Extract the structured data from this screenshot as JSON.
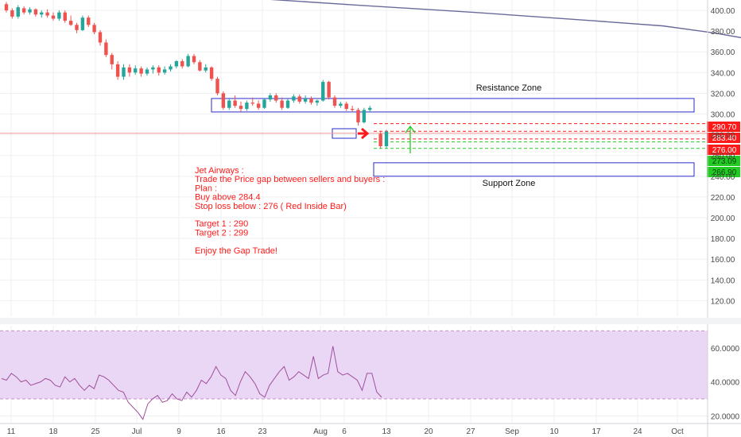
{
  "chart_data": [
    {
      "type": "candlestick",
      "ylim": [
        105,
        410
      ],
      "y_ticks": [
        120,
        140,
        160,
        180,
        200,
        220,
        240,
        260,
        280,
        300,
        320,
        340,
        360,
        380,
        400
      ],
      "y_tick_labels": [
        "120.00",
        "140.00",
        "160.00",
        "180.00",
        "200.00",
        "220.00",
        "240.00",
        "260.00",
        "280.00",
        "300.00",
        "320.00",
        "340.00",
        "360.00",
        "380.00",
        "400.00"
      ],
      "x_tick_labels": [
        "11",
        "18",
        "25",
        "Jul",
        "9",
        "16",
        "23",
        "Aug",
        "6",
        "13",
        "20",
        "27",
        "Sep",
        "10",
        "17",
        "24",
        "Oct"
      ],
      "grid": true,
      "candles": [
        [
          406,
          408,
          398,
          400
        ],
        [
          400,
          402,
          392,
          394
        ],
        [
          394,
          405,
          392,
          403
        ],
        [
          402,
          404,
          396,
          398
        ],
        [
          398,
          403,
          396,
          401
        ],
        [
          401,
          402,
          394,
          396
        ],
        [
          396,
          400,
          393,
          398
        ],
        [
          398,
          401,
          393,
          395
        ],
        [
          395,
          398,
          390,
          392
        ],
        [
          392,
          400,
          390,
          398
        ],
        [
          398,
          400,
          388,
          390
        ],
        [
          390,
          395,
          385,
          386
        ],
        [
          386,
          388,
          378,
          381
        ],
        [
          381,
          395,
          380,
          393
        ],
        [
          393,
          395,
          384,
          386
        ],
        [
          386,
          388,
          377,
          379
        ],
        [
          379,
          381,
          366,
          369
        ],
        [
          369,
          372,
          355,
          357
        ],
        [
          357,
          359,
          343,
          348
        ],
        [
          348,
          351,
          333,
          336
        ],
        [
          336,
          348,
          333,
          345
        ],
        [
          345,
          348,
          336,
          340
        ],
        [
          340,
          347,
          338,
          344
        ],
        [
          344,
          346,
          336,
          339
        ],
        [
          339,
          345,
          337,
          343
        ],
        [
          343,
          347,
          339,
          345
        ],
        [
          345,
          347,
          337,
          340
        ],
        [
          340,
          346,
          338,
          343
        ],
        [
          343,
          348,
          341,
          346
        ],
        [
          346,
          352,
          344,
          351
        ],
        [
          351,
          353,
          344,
          346
        ],
        [
          346,
          358,
          345,
          356
        ],
        [
          356,
          358,
          348,
          350
        ],
        [
          350,
          352,
          341,
          342
        ],
        [
          342,
          348,
          340,
          345
        ],
        [
          345,
          346,
          332,
          334
        ],
        [
          334,
          336,
          318,
          320
        ],
        [
          320,
          322,
          304,
          306
        ],
        [
          306,
          315,
          304,
          313
        ],
        [
          313,
          318,
          306,
          308
        ],
        [
          308,
          312,
          302,
          305
        ],
        [
          305,
          313,
          303,
          311
        ],
        [
          311,
          316,
          308,
          310
        ],
        [
          310,
          313,
          304,
          306
        ],
        [
          306,
          315,
          305,
          314
        ],
        [
          314,
          320,
          312,
          318
        ],
        [
          318,
          320,
          311,
          313
        ],
        [
          313,
          316,
          304,
          306
        ],
        [
          306,
          315,
          305,
          313
        ],
        [
          313,
          319,
          311,
          317
        ],
        [
          317,
          319,
          310,
          312
        ],
        [
          312,
          318,
          310,
          315
        ],
        [
          315,
          317,
          309,
          311
        ],
        [
          311,
          314,
          308,
          313
        ],
        [
          313,
          333,
          312,
          331
        ],
        [
          331,
          332,
          314,
          316
        ],
        [
          316,
          318,
          306,
          308
        ],
        [
          308,
          312,
          306,
          310
        ],
        [
          310,
          312,
          303,
          305
        ],
        [
          305,
          308,
          302,
          304
        ],
        [
          304,
          306,
          289,
          292
        ],
        [
          292,
          306,
          291,
          304
        ],
        [
          304,
          308,
          302,
          306
        ],
        [
          281,
          284,
          267,
          269
        ],
        [
          269,
          285,
          267,
          283
        ]
      ],
      "sma": [
        [
          41,
          412
        ],
        [
          60,
          405
        ],
        [
          80,
          398
        ],
        [
          100,
          390
        ],
        [
          112,
          385
        ],
        [
          121,
          378
        ],
        [
          129,
          370
        ]
      ],
      "resistance_zone": {
        "label": "Resistance Zone",
        "top": 315,
        "bottom": 302
      },
      "support_zone": {
        "label": "Support Zone",
        "top": 253,
        "bottom": 240
      },
      "price_levels": [
        {
          "label": "290.70",
          "value": 290.7,
          "color": "#ff1a1a",
          "style": "dashed"
        },
        {
          "label": "283.40",
          "value": 283.4,
          "color": "#ff1a1a",
          "style": "dashed"
        },
        {
          "label": "276.00",
          "value": 276.0,
          "color": "#ff1a1a",
          "style": "dashed"
        },
        {
          "label": "273.09",
          "value": 273.09,
          "color": "#22cc22",
          "style": "dashed"
        },
        {
          "label": "266.90",
          "value": 266.9,
          "color": "#22cc22",
          "style": "dashed"
        }
      ],
      "last_price": 281.4,
      "note_lines": [
        "Jet Airways :",
        "Trade the Price gap between sellers and buyers :",
        "Plan :",
        "Buy above 284.4",
        "Stop loss below : 276 ( Red Inside Bar)",
        "",
        "Target 1 : 290",
        "Target 2 : 299",
        "",
        "Enjoy the Gap Trade!"
      ],
      "colors": {
        "up": "#26a69a",
        "down": "#ef5350",
        "sma": "#6a6a9a",
        "zone": "#2b2bcc",
        "note": "#ff1a1a"
      }
    },
    {
      "type": "line",
      "ylim": [
        16,
        73
      ],
      "y_ticks": [
        20,
        40,
        60
      ],
      "y_tick_labels": [
        "20.0000",
        "40.0000",
        "60.0000"
      ],
      "band": [
        30,
        70
      ],
      "values": [
        42,
        41,
        45,
        43,
        40,
        41,
        38,
        39,
        40,
        42,
        41,
        38,
        37,
        43,
        40,
        42,
        38,
        35,
        38,
        36,
        44,
        43,
        41,
        38,
        35,
        34,
        28,
        25,
        22,
        18,
        27,
        30,
        32,
        28,
        29,
        33,
        30,
        29,
        34,
        31,
        35,
        41,
        39,
        43,
        49,
        44,
        42,
        35,
        32,
        40,
        46,
        43,
        39,
        33,
        31,
        38,
        42,
        46,
        49,
        41,
        43,
        46,
        44,
        42,
        55,
        42,
        44,
        45,
        61,
        46,
        44,
        45,
        43,
        41,
        35,
        45,
        45,
        34,
        31
      ],
      "colors": {
        "line": "#a0509a",
        "band": "#ead7f5",
        "band_edge": "#c98fc9"
      }
    }
  ]
}
